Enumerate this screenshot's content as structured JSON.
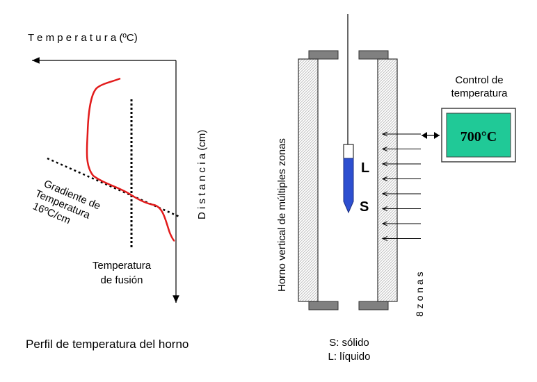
{
  "profile": {
    "axis_temp_label": "T e m p e r a t u r a  (ºC)",
    "axis_dist_label": "D i s t a n c i a   (cm)",
    "gradient_label_l1": "Gradiente de",
    "gradient_label_l2": "Temperatura",
    "gradient_label_l3": "16ºC/cm",
    "fusion_label_l1": "Temperatura",
    "fusion_label_l2": "de fusión",
    "caption": "Perfil de temperatura del horno",
    "curve_color": "#e21b1b"
  },
  "furnace": {
    "vertical_label": "Horno  vertical  de  múltiples  zonas",
    "liquid_marker": "L",
    "solid_marker": "S",
    "zones_label": "8 z o n a s",
    "zone_count": 8,
    "control_label_l1": "Control de",
    "control_label_l2": "temperatura",
    "control_value": "700°C",
    "control_color": "#20c997",
    "crystal_color": "#2d4fd0",
    "legend_solid": "S: sólido",
    "legend_liquid": "L: líquido"
  }
}
